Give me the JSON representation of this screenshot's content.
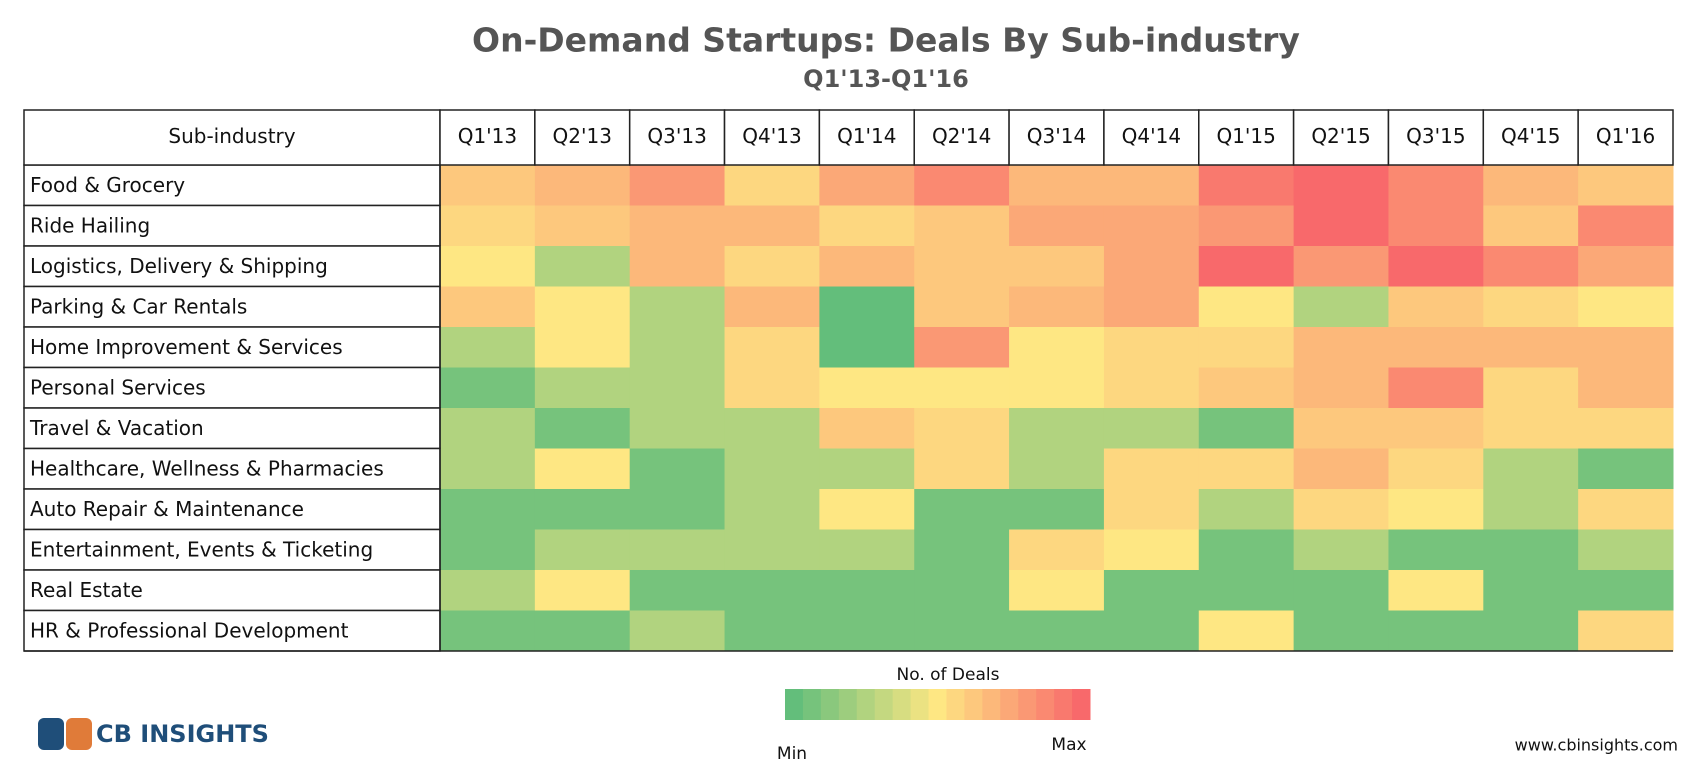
{
  "chart_data": {
    "type": "heatmap",
    "title": "On-Demand Startups: Deals By Sub-industry",
    "subtitle": "Q1'13-Q1'16",
    "row_header": "Sub-industry",
    "columns": [
      "Q1'13",
      "Q2'13",
      "Q3'13",
      "Q4'13",
      "Q1'14",
      "Q2'14",
      "Q3'14",
      "Q4'14",
      "Q1'15",
      "Q2'15",
      "Q3'15",
      "Q4'15",
      "Q1'16"
    ],
    "rows": [
      "Food & Grocery",
      "Ride Hailing",
      "Logistics, Delivery & Shipping",
      "Parking & Car Rentals",
      "Home Improvement & Services",
      "Personal Services",
      "Travel & Vacation",
      "Healthcare, Wellness & Pharmacies",
      "Auto Repair & Maintenance",
      "Entertainment, Events & Ticketing",
      "Real Estate",
      "HR & Professional Development"
    ],
    "values": [
      [
        10,
        11,
        13,
        9,
        12,
        14,
        11,
        11,
        15,
        16,
        14,
        11,
        10
      ],
      [
        9,
        10,
        11,
        11,
        9,
        10,
        12,
        12,
        13,
        16,
        14,
        10,
        14
      ],
      [
        8,
        4,
        11,
        9,
        11,
        10,
        10,
        12,
        16,
        13,
        16,
        14,
        12
      ],
      [
        10,
        8,
        4,
        11,
        0,
        10,
        11,
        12,
        8,
        4,
        10,
        9,
        8
      ],
      [
        4,
        8,
        4,
        9,
        0,
        13,
        8,
        9,
        9,
        11,
        11,
        11,
        11
      ],
      [
        1,
        4,
        4,
        9,
        8,
        8,
        8,
        9,
        10,
        11,
        14,
        9,
        11
      ],
      [
        4,
        1,
        4,
        4,
        10,
        9,
        4,
        4,
        1,
        10,
        10,
        9,
        9
      ],
      [
        4,
        8,
        1,
        4,
        4,
        9,
        4,
        9,
        9,
        11,
        9,
        4,
        1
      ],
      [
        1,
        1,
        1,
        4,
        8,
        1,
        1,
        9,
        4,
        9,
        8,
        4,
        9
      ],
      [
        1,
        4,
        4,
        4,
        4,
        1,
        9,
        8,
        1,
        4,
        1,
        1,
        4
      ],
      [
        4,
        8,
        1,
        1,
        1,
        1,
        8,
        1,
        1,
        1,
        8,
        1,
        1
      ],
      [
        1,
        1,
        4,
        1,
        1,
        1,
        1,
        1,
        8,
        1,
        1,
        1,
        9
      ]
    ],
    "vlim": [
      0,
      16
    ],
    "colors": [
      "#63be7b",
      "#fee783",
      "#f8696b"
    ],
    "legend_title": "No. of Deals",
    "legend_min": "Min",
    "legend_max": "Max"
  },
  "footer": {
    "logo": "CB INSIGHTS",
    "url": "www.cbinsights.com"
  }
}
